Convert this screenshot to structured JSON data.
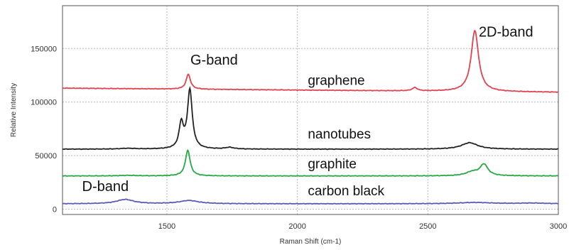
{
  "chart_data": {
    "type": "line",
    "xlabel": "Raman Shift (cm-1)",
    "ylabel": "Relative Intensity",
    "xlim": [
      1100,
      3000
    ],
    "ylim": [
      -5000,
      190000
    ],
    "x_ticks": [
      1500,
      2000,
      2500,
      3000
    ],
    "y_ticks": [
      0,
      50000,
      100000,
      150000
    ],
    "grid": true,
    "annotations": [
      {
        "text": "G-band",
        "x": 1590,
        "y": 135000
      },
      {
        "text": "2D-band",
        "x": 2695,
        "y": 161000
      },
      {
        "text": "D-band",
        "x": 1175,
        "y": 17000
      }
    ],
    "series": [
      {
        "name": "graphene",
        "color": "#e0424f",
        "label_pos": {
          "x": 2040,
          "y": 116000
        },
        "baseline": 113000,
        "slope": -2.0,
        "peaks": [
          [
            1582,
            14000,
            10
          ],
          [
            2450,
            3000,
            12
          ],
          [
            2680,
            57000,
            17
          ]
        ]
      },
      {
        "name": "nanotubes",
        "color": "#222222",
        "label_pos": {
          "x": 2040,
          "y": 66000
        },
        "baseline": 56000,
        "slope": 0,
        "peaks": [
          [
            1555,
            23000,
            10
          ],
          [
            1588,
            55000,
            11
          ],
          [
            1350,
            700,
            35
          ],
          [
            1740,
            1500,
            20
          ],
          [
            2660,
            6000,
            38
          ]
        ]
      },
      {
        "name": "graphite",
        "color": "#28a745",
        "label_pos": {
          "x": 2040,
          "y": 38000
        },
        "baseline": 31000,
        "slope": 0,
        "peaks": [
          [
            1580,
            24000,
            11
          ],
          [
            2670,
            3500,
            30
          ],
          [
            2715,
            10500,
            18
          ],
          [
            1350,
            500,
            40
          ]
        ]
      },
      {
        "name": "carbon black",
        "color": "#5a5ab4",
        "label_pos": {
          "x": 2040,
          "y": 13000
        },
        "baseline": 5000,
        "slope": 0,
        "peaks": [
          [
            1340,
            4000,
            40
          ],
          [
            1585,
            3000,
            45
          ],
          [
            2680,
            1200,
            80
          ],
          [
            2900,
            600,
            60
          ]
        ]
      }
    ]
  }
}
